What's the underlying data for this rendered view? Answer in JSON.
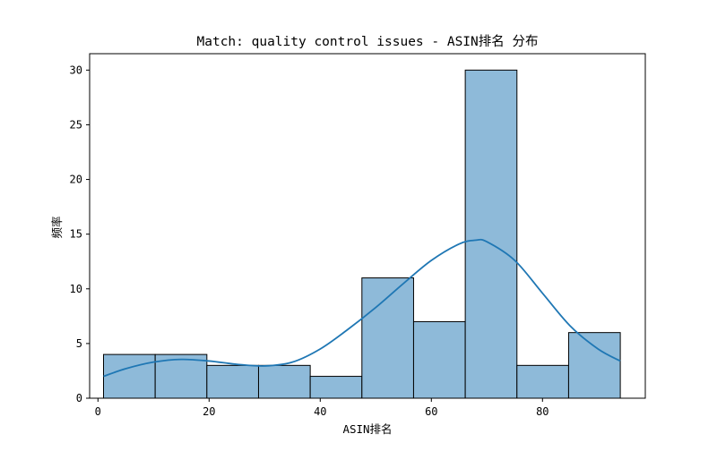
{
  "chart_data": {
    "type": "bar",
    "title": "Match: quality control issues - ASIN排名 分布",
    "xlabel": "ASIN排名",
    "ylabel": "频率",
    "xlim": [
      -1.5,
      98.5
    ],
    "ylim": [
      0,
      31.5
    ],
    "x_ticks": [
      0,
      20,
      40,
      60,
      80
    ],
    "y_ticks": [
      0,
      5,
      10,
      15,
      20,
      25,
      30
    ],
    "bin_edges": [
      1,
      10.3,
      19.6,
      28.9,
      38.2,
      47.5,
      56.8,
      66.1,
      75.4,
      84.7,
      94
    ],
    "values": [
      4,
      4,
      3,
      3,
      2,
      11,
      7,
      30,
      3,
      6
    ],
    "kde": {
      "x": [
        1,
        5,
        10,
        15,
        20,
        25,
        30,
        35,
        40,
        45,
        50,
        55,
        60,
        65,
        68,
        70,
        75,
        80,
        85,
        90,
        94
      ],
      "y": [
        2.0,
        2.7,
        3.3,
        3.55,
        3.4,
        3.1,
        2.95,
        3.3,
        4.5,
        6.3,
        8.3,
        10.5,
        12.6,
        14.1,
        14.45,
        14.3,
        12.6,
        9.6,
        6.6,
        4.5,
        3.4
      ]
    },
    "bar_color": "#8ebad9",
    "bar_edge_color": "#000000",
    "kde_color": "#1f77b4",
    "grid": false,
    "legend": "none"
  }
}
